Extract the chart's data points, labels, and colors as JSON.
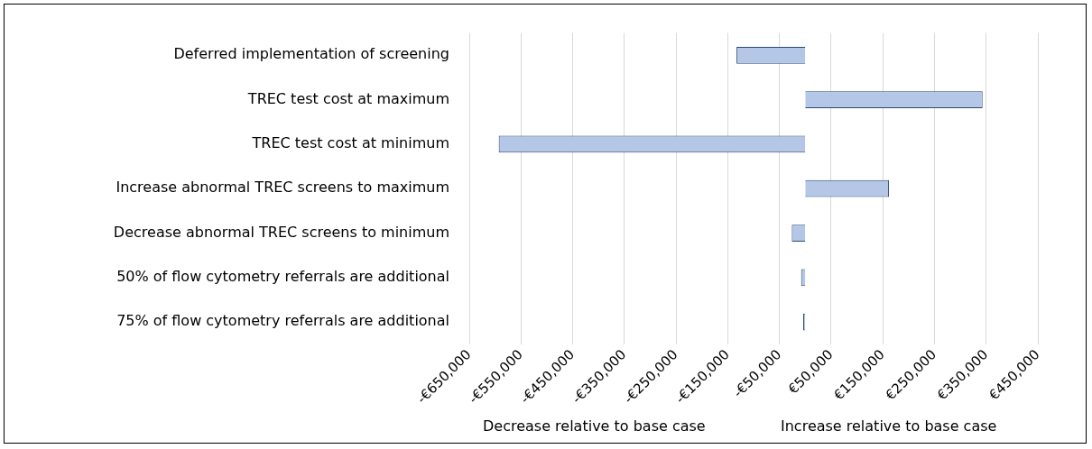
{
  "chart_data": {
    "type": "bar",
    "orientation": "horizontal",
    "categories": [
      "Deferred implementation of screening",
      "TREC test cost at maximum",
      "TREC test cost at minimum",
      "Increase abnormal TREC screens to maximum",
      "Decrease abnormal TREC screens to minimum",
      "50% of flow cytometry referrals are additional",
      "75% of flow cytometry referrals are additional"
    ],
    "values": [
      -133000,
      343000,
      -593000,
      162000,
      -26000,
      -8000,
      -4000
    ],
    "color": "#b4c7e7",
    "xlim": [
      -650000,
      450000
    ],
    "xticks": [
      {
        "value": -650000,
        "label": "-€650,000"
      },
      {
        "value": -550000,
        "label": "-€550,000"
      },
      {
        "value": -450000,
        "label": "-€450,000"
      },
      {
        "value": -350000,
        "label": "-€350,000"
      },
      {
        "value": -250000,
        "label": "-€250,000"
      },
      {
        "value": -150000,
        "label": "-€150,000"
      },
      {
        "value": -50000,
        "label": "-€50,000"
      },
      {
        "value": 50000,
        "label": "€50,000"
      },
      {
        "value": 150000,
        "label": "€150,000"
      },
      {
        "value": 250000,
        "label": "€250,000"
      },
      {
        "value": 350000,
        "label": "€350,000"
      },
      {
        "value": 450000,
        "label": "€450,000"
      }
    ],
    "grid": "x",
    "annotations": [
      "Decrease relative to base case",
      "Increase relative to base case"
    ]
  }
}
